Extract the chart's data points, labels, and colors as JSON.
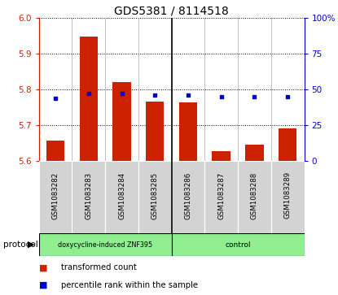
{
  "title": "GDS5381 / 8114518",
  "samples": [
    "GSM1083282",
    "GSM1083283",
    "GSM1083284",
    "GSM1083285",
    "GSM1083286",
    "GSM1083287",
    "GSM1083288",
    "GSM1083289"
  ],
  "transformed_counts": [
    5.657,
    5.948,
    5.82,
    5.767,
    5.763,
    5.627,
    5.645,
    5.69
  ],
  "percentile_ranks": [
    44,
    47,
    47,
    46,
    46,
    45,
    45,
    45
  ],
  "bar_bottom": 5.6,
  "ylim_left": [
    5.6,
    6.0
  ],
  "ylim_right": [
    0,
    100
  ],
  "yticks_left": [
    5.6,
    5.7,
    5.8,
    5.9,
    6.0
  ],
  "yticks_right": [
    0,
    25,
    50,
    75,
    100
  ],
  "bar_color": "#cc2200",
  "dot_color": "#0000cc",
  "protocol_groups": [
    {
      "label": "doxycycline-induced ZNF395",
      "start": 0,
      "end": 4,
      "color": "#90ee90"
    },
    {
      "label": "control",
      "start": 4,
      "end": 8,
      "color": "#90ee90"
    }
  ],
  "protocol_label": "protocol",
  "background_color": "#ffffff",
  "axes_color_left": "#cc2200",
  "axes_color_right": "#0000cc",
  "label_transformed": "transformed count",
  "label_percentile": "percentile rank within the sample",
  "separator_at": 4,
  "cell_border_color": "#aaaaaa",
  "gray_cell_color": "#d3d3d3"
}
